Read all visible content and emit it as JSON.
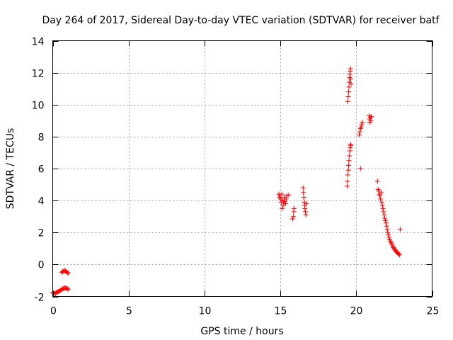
{
  "chart_data": {
    "type": "scatter",
    "title": "Day 264 of 2017, Sidereal Day-to-day VTEC variation (SDTVAR) for receiver batf",
    "xlabel": "GPS time / hours",
    "ylabel": "SDTVAR / TECUs",
    "xlim": [
      0,
      25
    ],
    "ylim": [
      -2,
      14
    ],
    "xticks": [
      0,
      5,
      10,
      15,
      20,
      25
    ],
    "yticks": [
      -2,
      0,
      2,
      4,
      6,
      8,
      10,
      12,
      14
    ],
    "xtick_labels": [
      "0",
      "5",
      "10",
      "15",
      "20",
      "25"
    ],
    "ytick_labels": [
      "-2",
      "0",
      "2",
      "4",
      "6",
      "8",
      "10",
      "12",
      "14"
    ],
    "grid": true,
    "marker": "+",
    "series": [
      {
        "name": "SDTVAR",
        "color": "#ff0000",
        "points": [
          [
            0.0,
            -1.75
          ],
          [
            0.06,
            -1.8
          ],
          [
            0.12,
            -1.78
          ],
          [
            0.18,
            -1.82
          ],
          [
            0.24,
            -1.76
          ],
          [
            0.3,
            -1.72
          ],
          [
            0.36,
            -1.7
          ],
          [
            0.42,
            -1.68
          ],
          [
            0.48,
            -1.64
          ],
          [
            0.54,
            -1.6
          ],
          [
            0.6,
            -1.56
          ],
          [
            0.66,
            -1.52
          ],
          [
            0.72,
            -1.5
          ],
          [
            0.78,
            -1.48
          ],
          [
            0.84,
            -1.47
          ],
          [
            0.9,
            -1.5
          ],
          [
            0.96,
            -1.52
          ],
          [
            1.02,
            -1.55
          ],
          [
            0.6,
            -0.5
          ],
          [
            0.66,
            -0.45
          ],
          [
            0.72,
            -0.4
          ],
          [
            0.78,
            -0.38
          ],
          [
            0.84,
            -0.42
          ],
          [
            0.9,
            -0.47
          ],
          [
            0.96,
            -0.5
          ],
          [
            1.02,
            -0.55
          ],
          [
            14.9,
            4.4
          ],
          [
            14.94,
            4.2
          ],
          [
            14.98,
            4.3
          ],
          [
            15.02,
            4.1
          ],
          [
            15.06,
            3.9
          ],
          [
            15.1,
            4.4
          ],
          [
            15.14,
            4.0
          ],
          [
            15.18,
            3.7
          ],
          [
            15.22,
            3.9
          ],
          [
            15.26,
            4.2
          ],
          [
            15.3,
            3.95
          ],
          [
            15.34,
            3.8
          ],
          [
            15.38,
            4.1
          ],
          [
            15.42,
            4.3
          ],
          [
            15.12,
            3.5
          ],
          [
            15.55,
            4.35
          ],
          [
            15.8,
            2.85
          ],
          [
            15.85,
            3.0
          ],
          [
            15.88,
            3.3
          ],
          [
            15.9,
            3.5
          ],
          [
            16.5,
            4.8
          ],
          [
            16.52,
            4.5
          ],
          [
            16.55,
            4.2
          ],
          [
            16.58,
            3.9
          ],
          [
            16.6,
            3.7
          ],
          [
            16.62,
            3.5
          ],
          [
            16.65,
            3.3
          ],
          [
            16.68,
            3.1
          ],
          [
            16.7,
            3.8
          ],
          [
            19.4,
            4.9
          ],
          [
            19.42,
            5.2
          ],
          [
            19.45,
            5.6
          ],
          [
            19.48,
            5.9
          ],
          [
            19.5,
            6.2
          ],
          [
            19.52,
            6.5
          ],
          [
            19.55,
            6.8
          ],
          [
            19.58,
            7.1
          ],
          [
            19.6,
            7.3
          ],
          [
            19.62,
            7.5
          ],
          [
            19.65,
            7.45
          ],
          [
            19.45,
            10.2
          ],
          [
            19.47,
            10.5
          ],
          [
            19.5,
            10.8
          ],
          [
            19.52,
            11.1
          ],
          [
            19.54,
            11.4
          ],
          [
            19.56,
            11.7
          ],
          [
            19.58,
            11.9
          ],
          [
            19.6,
            12.1
          ],
          [
            19.62,
            12.25
          ],
          [
            19.64,
            11.6
          ],
          [
            19.66,
            11.3
          ],
          [
            20.2,
            8.1
          ],
          [
            20.24,
            8.3
          ],
          [
            20.28,
            8.5
          ],
          [
            20.32,
            8.6
          ],
          [
            20.36,
            8.75
          ],
          [
            20.4,
            8.9
          ],
          [
            20.3,
            6.0
          ],
          [
            20.85,
            9.3
          ],
          [
            20.88,
            9.1
          ],
          [
            20.9,
            8.9
          ],
          [
            20.93,
            9.2
          ],
          [
            20.96,
            9.0
          ],
          [
            21.0,
            9.25
          ],
          [
            21.4,
            5.2
          ],
          [
            21.44,
            4.7
          ],
          [
            21.48,
            4.6
          ],
          [
            21.52,
            4.4
          ],
          [
            21.56,
            4.3
          ],
          [
            21.6,
            4.1
          ],
          [
            21.64,
            4.5
          ],
          [
            21.68,
            3.9
          ],
          [
            21.72,
            3.7
          ],
          [
            21.76,
            3.5
          ],
          [
            21.8,
            3.3
          ],
          [
            21.84,
            3.1
          ],
          [
            21.88,
            2.9
          ],
          [
            21.92,
            2.75
          ],
          [
            21.96,
            2.6
          ],
          [
            22.0,
            2.4
          ],
          [
            22.04,
            2.2
          ],
          [
            22.08,
            2.0
          ],
          [
            22.12,
            1.85
          ],
          [
            22.16,
            1.7
          ],
          [
            22.2,
            1.55
          ],
          [
            22.25,
            1.45
          ],
          [
            22.3,
            1.35
          ],
          [
            22.35,
            1.25
          ],
          [
            22.4,
            1.15
          ],
          [
            22.45,
            1.05
          ],
          [
            22.5,
            0.98
          ],
          [
            22.55,
            0.92
          ],
          [
            22.6,
            0.85
          ],
          [
            22.65,
            0.8
          ],
          [
            22.7,
            0.75
          ],
          [
            22.75,
            0.7
          ],
          [
            22.8,
            0.65
          ],
          [
            22.85,
            0.6
          ],
          [
            22.9,
            2.2
          ]
        ]
      }
    ]
  }
}
